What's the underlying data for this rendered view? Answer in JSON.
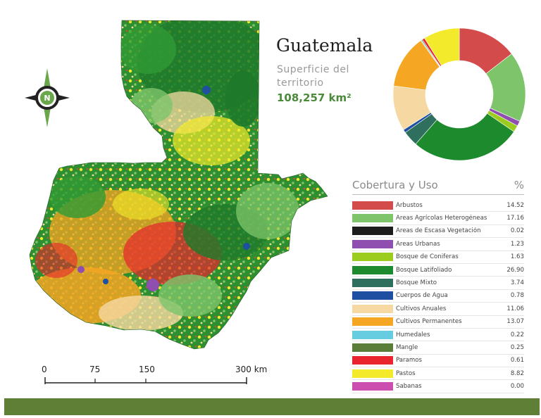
{
  "title": "Guatemala",
  "subtitle": "Superficie del territorio",
  "area": "108,257 km²",
  "compass": {
    "north": "N",
    "icon": "compass-rose-icon"
  },
  "scale": {
    "labels": [
      "0",
      "75",
      "150",
      "300 km"
    ]
  },
  "legend": {
    "header": "Cobertura y Uso",
    "pct_header": "%",
    "items": [
      {
        "label": "Arbustos",
        "value": "14.52",
        "color": "#d44b4b"
      },
      {
        "label": "Áreas Agrícolas Heterogéneas",
        "value": "17.16",
        "color": "#7dc46b"
      },
      {
        "label": "Áreas de Escasa Vegetación",
        "value": "0.02",
        "color": "#1c1c1c"
      },
      {
        "label": "Áreas Urbanas",
        "value": "1.23",
        "color": "#8e4fb0"
      },
      {
        "label": "Bosque de Coniferas",
        "value": "1.63",
        "color": "#9ccc1e"
      },
      {
        "label": "Bosque Latifoliado",
        "value": "26.90",
        "color": "#1e8a2e"
      },
      {
        "label": "Bosque Mixto",
        "value": "3.74",
        "color": "#2f6f5e"
      },
      {
        "label": "Cuerpos de Agua",
        "value": "0.78",
        "color": "#1f4fa0"
      },
      {
        "label": "Cultivos Anuales",
        "value": "11.06",
        "color": "#f6d9a2"
      },
      {
        "label": "Cultivos Permanentes",
        "value": "13.07",
        "color": "#f5a623"
      },
      {
        "label": "Humedales",
        "value": "0.22",
        "color": "#66cde0"
      },
      {
        "label": "Mangle",
        "value": "0.25",
        "color": "#5a7d3a"
      },
      {
        "label": "Paramos",
        "value": "0.61",
        "color": "#e8252d"
      },
      {
        "label": "Pastos",
        "value": "8.82",
        "color": "#f2ea2a"
      },
      {
        "label": "Sabanas",
        "value": "0.00",
        "color": "#cc4fb0"
      }
    ]
  }
}
